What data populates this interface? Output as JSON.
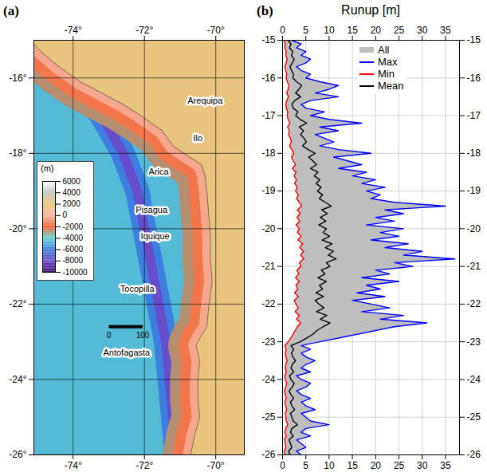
{
  "chart_data": [
    {
      "type": "map",
      "title": "(a)",
      "xlim": [
        -75.1,
        -69.2
      ],
      "xticks": [
        {
          "value": -74,
          "label": "-74°"
        },
        {
          "value": -72,
          "label": "-72°"
        },
        {
          "value": -70,
          "label": "-70°"
        }
      ],
      "ylim": [
        -26,
        -15
      ],
      "yticks": [
        {
          "value": -16,
          "label": "-16°"
        },
        {
          "value": -18,
          "label": "-18°"
        },
        {
          "value": -20,
          "label": "-20°"
        },
        {
          "value": -22,
          "label": "-22°"
        },
        {
          "value": -24,
          "label": "-24°"
        },
        {
          "value": -26,
          "label": "-26°"
        }
      ],
      "grid": true,
      "ocean_depth": -4600,
      "coastline": {
        "lon": [
          -75.4,
          -74.9,
          -74.4,
          -73.8,
          -73.2,
          -72.6,
          -72.1,
          -71.5,
          -71.2,
          -70.9,
          -70.4,
          -70.3,
          -70.25,
          -70.2,
          -70.15,
          -70.15,
          -70.1,
          -70.2,
          -70.25,
          -70.45,
          -70.55,
          -70.45,
          -70.5,
          -70.5,
          -70.45,
          -70.6,
          -70.7,
          -70.75
        ],
        "lat": [
          -14.8,
          -15.3,
          -15.7,
          -16.1,
          -16.4,
          -16.7,
          -17.0,
          -17.4,
          -17.8,
          -18.0,
          -18.3,
          -18.6,
          -19.0,
          -19.6,
          -20.2,
          -20.8,
          -21.4,
          -22.1,
          -22.6,
          -22.9,
          -23.1,
          -23.5,
          -24.0,
          -24.5,
          -25.0,
          -25.5,
          -26.0,
          -26.3
        ],
        "shelf_depths": [
          -2800,
          -1500,
          -400
        ],
        "land_elevation": 1800
      },
      "trench": {
        "depths": [
          -6000,
          -7800
        ],
        "lon": [
          -74.9,
          -74.7,
          -74.0,
          -73.2,
          -72.6,
          -72.2,
          -72.0,
          -71.8,
          -71.6,
          -71.4,
          -71.3,
          -71.2,
          -71.1,
          -71.05
        ],
        "lat": [
          -14.7,
          -15.0,
          -16.0,
          -17.0,
          -18.0,
          -19.0,
          -20.0,
          -21.0,
          -22.0,
          -23.0,
          -24.0,
          -25.0,
          -26.0,
          -26.3
        ]
      },
      "places": [
        {
          "name": "Arequipa",
          "lon": -70.3,
          "lat": -16.6
        },
        {
          "name": "Ilo",
          "lon": -70.5,
          "lat": -17.6
        },
        {
          "name": "Arica",
          "lon": -71.6,
          "lat": -18.5
        },
        {
          "name": "Pisagua",
          "lon": -71.8,
          "lat": -19.5
        },
        {
          "name": "Iquique",
          "lon": -71.7,
          "lat": -20.2
        },
        {
          "name": "Tocopilla",
          "lon": -72.2,
          "lat": -21.6
        },
        {
          "name": "Antofagasta",
          "lon": -72.5,
          "lat": -23.3
        }
      ],
      "scale_bar": {
        "labels": [
          0,
          100
        ],
        "lon": [
          -73.0,
          -72.05
        ],
        "lat": -22.6
      },
      "colorbar": {
        "label": "(m)",
        "range": [
          -10000,
          6000
        ],
        "ticks": [
          6000,
          4000,
          2000,
          0,
          -2000,
          -4000,
          -6000,
          -8000,
          -10000
        ],
        "colors": [
          "#ffffff",
          "#c4c4c4",
          "#e6c57a",
          "#f7b7a0",
          "#f06030",
          "#5fd3d0",
          "#3d7fe0",
          "#6a49c8",
          "#3b0a6e"
        ]
      }
    },
    {
      "type": "line",
      "title": "(b)",
      "xlabel": "Runup [m]",
      "orientation": "horizontal",
      "xlim": [
        0,
        38
      ],
      "xticks": [
        0,
        5,
        10,
        15,
        20,
        25,
        30,
        35
      ],
      "ylim": [
        -26,
        -15
      ],
      "yticks": [
        -15,
        -16,
        -17,
        -18,
        -19,
        -20,
        -21,
        -22,
        -23,
        -24,
        -25,
        -26
      ],
      "grid": true,
      "legend": "top-right",
      "y": [
        -15,
        -15.1,
        -15.2,
        -15.3,
        -15.4,
        -15.5,
        -15.6,
        -15.7,
        -15.8,
        -15.9,
        -16,
        -16.1,
        -16.2,
        -16.3,
        -16.4,
        -16.5,
        -16.6,
        -16.7,
        -16.8,
        -16.9,
        -17,
        -17.1,
        -17.2,
        -17.3,
        -17.4,
        -17.5,
        -17.6,
        -17.7,
        -17.8,
        -17.9,
        -18,
        -18.1,
        -18.2,
        -18.3,
        -18.4,
        -18.5,
        -18.6,
        -18.7,
        -18.8,
        -18.9,
        -19,
        -19.1,
        -19.2,
        -19.3,
        -19.4,
        -19.5,
        -19.6,
        -19.7,
        -19.8,
        -19.9,
        -20,
        -20.1,
        -20.2,
        -20.3,
        -20.4,
        -20.5,
        -20.6,
        -20.7,
        -20.8,
        -20.9,
        -21,
        -21.1,
        -21.2,
        -21.3,
        -21.4,
        -21.5,
        -21.6,
        -21.7,
        -21.8,
        -21.9,
        -22,
        -22.1,
        -22.2,
        -22.3,
        -22.4,
        -22.5,
        -22.6,
        -22.7,
        -22.8,
        -22.9,
        -23,
        -23.1,
        -23.2,
        -23.3,
        -23.4,
        -23.5,
        -23.6,
        -23.7,
        -23.8,
        -23.9,
        -24,
        -24.1,
        -24.2,
        -24.3,
        -24.4,
        -24.5,
        -24.6,
        -24.7,
        -24.8,
        -24.9,
        -25,
        -25.1,
        -25.2,
        -25.3,
        -25.4,
        -25.5,
        -25.6,
        -25.7,
        -25.8,
        -25.9,
        -26
      ],
      "series": [
        {
          "name": "All",
          "color": "#bebebe",
          "type": "area",
          "between": [
            "Min",
            "Max"
          ]
        },
        {
          "name": "Max",
          "color": "#0000ff",
          "type": "line",
          "values": [
            2,
            4,
            3,
            5,
            4,
            6,
            5,
            3,
            4,
            6,
            5,
            8,
            12,
            10,
            7,
            12,
            6,
            4,
            5,
            9,
            6,
            10,
            17,
            8,
            12,
            7,
            9,
            11,
            8,
            12,
            19,
            11,
            14,
            17,
            12,
            18,
            15,
            20,
            17,
            22,
            18,
            21,
            19,
            24,
            35,
            22,
            26,
            20,
            24,
            18,
            26,
            21,
            25,
            19,
            27,
            22,
            30,
            26,
            37,
            24,
            28,
            20,
            23,
            17,
            25,
            18,
            21,
            16,
            22,
            15,
            19,
            23,
            17,
            26,
            21,
            31,
            24,
            20,
            16,
            12,
            8,
            4,
            6,
            4,
            5,
            7,
            5,
            4,
            6,
            3,
            4,
            6,
            5,
            3,
            4,
            6,
            4,
            5,
            7,
            4,
            5,
            6,
            10,
            5,
            4,
            6,
            3,
            4,
            5,
            3,
            4
          ]
        },
        {
          "name": "Min",
          "color": "#ff0000",
          "type": "line",
          "values": [
            0.3,
            0.6,
            0.5,
            0.8,
            0.7,
            1.0,
            0.8,
            0.5,
            0.7,
            0.9,
            0.8,
            1.0,
            1.4,
            1.2,
            0.9,
            1.3,
            0.9,
            0.7,
            0.8,
            1.1,
            1.0,
            1.2,
            1.6,
            1.1,
            1.5,
            1.3,
            1.7,
            1.9,
            1.5,
            2.0,
            2.4,
            1.9,
            2.3,
            2.8,
            2.1,
            2.9,
            2.5,
            3.0,
            2.6,
            3.2,
            2.8,
            3.4,
            3.0,
            3.6,
            4.1,
            3.2,
            3.8,
            3.1,
            3.7,
            2.9,
            3.6,
            3.2,
            4.0,
            3.3,
            4.3,
            3.7,
            4.5,
            3.9,
            4.6,
            3.6,
            4.0,
            3.1,
            3.5,
            2.8,
            3.6,
            2.9,
            3.3,
            2.6,
            3.4,
            2.5,
            2.9,
            3.4,
            2.7,
            3.6,
            3.0,
            3.9,
            3.2,
            2.7,
            2.3,
            1.8,
            1.2,
            0.5,
            0.8,
            0.6,
            0.7,
            1.0,
            0.7,
            0.6,
            0.8,
            0.5,
            0.6,
            0.9,
            0.7,
            0.4,
            0.6,
            0.8,
            0.5,
            0.7,
            0.9,
            0.6,
            0.7,
            0.8,
            1.1,
            0.7,
            0.5,
            0.8,
            0.4,
            0.6,
            0.7,
            0.4,
            0.5
          ]
        },
        {
          "name": "Mean",
          "color": "#000000",
          "type": "line",
          "values": [
            1.2,
            1.8,
            1.5,
            2.2,
            1.9,
            2.5,
            2.1,
            1.6,
            1.9,
            2.4,
            2.2,
            3.0,
            4.1,
            3.5,
            2.8,
            3.9,
            2.6,
            2.0,
            2.3,
            3.3,
            2.8,
            3.8,
            5.2,
            3.6,
            4.5,
            3.9,
            4.6,
            5.1,
            4.3,
            5.5,
            7.0,
            5.6,
            6.5,
            7.3,
            6.0,
            7.6,
            6.8,
            8.0,
            7.2,
            8.3,
            7.5,
            8.6,
            7.9,
            9.2,
            10.5,
            8.4,
            9.6,
            8.1,
            9.3,
            7.8,
            9.4,
            8.7,
            10.1,
            8.5,
            10.6,
            9.2,
            10.9,
            9.8,
            11.5,
            9.4,
            10.2,
            8.3,
            9.1,
            7.6,
            9.4,
            7.9,
            8.6,
            7.2,
            8.8,
            7.0,
            7.8,
            8.9,
            7.3,
            9.5,
            8.1,
            10.2,
            8.7,
            7.4,
            6.5,
            5.2,
            3.8,
            1.8,
            2.4,
            1.9,
            2.2,
            2.8,
            2.1,
            1.8,
            2.4,
            1.5,
            1.8,
            2.5,
            2.1,
            1.4,
            1.8,
            2.4,
            1.7,
            2.0,
            2.6,
            1.7,
            2.0,
            2.3,
            3.2,
            2.0,
            1.7,
            2.3,
            1.4,
            1.7,
            2.0,
            1.3,
            1.6
          ]
        }
      ]
    }
  ]
}
